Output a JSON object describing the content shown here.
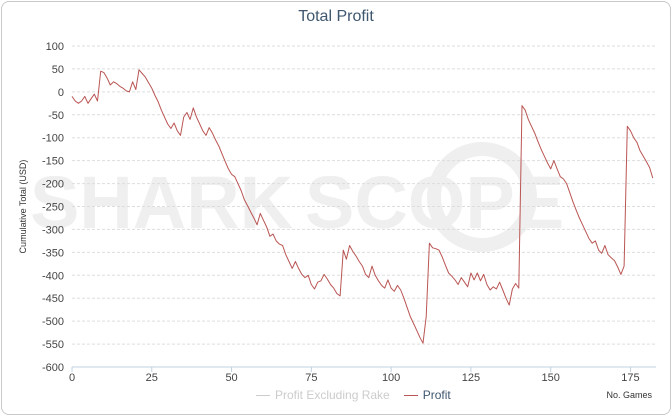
{
  "chart_data": {
    "type": "line",
    "title": "Total Profit",
    "ylabel": "Cumulative Total (USD)",
    "xlabel": "No. Games",
    "xlim": [
      0,
      183
    ],
    "ylim": [
      -600,
      100
    ],
    "x_ticks": [
      0,
      25,
      50,
      75,
      100,
      125,
      150,
      175
    ],
    "y_ticks": [
      100,
      50,
      0,
      -50,
      -100,
      -150,
      -200,
      -250,
      -300,
      -350,
      -400,
      -450,
      -500,
      -550,
      -600
    ],
    "grid": true,
    "legend_position": "bottom-center",
    "watermark": "SHARK SCOPE",
    "series": [
      {
        "name": "Profit Excluding Rake",
        "color": "#cccccc",
        "visible": false,
        "values": []
      },
      {
        "name": "Profit",
        "color": "#b95553",
        "visible": true,
        "points": [
          [
            0,
            -10
          ],
          [
            1,
            -20
          ],
          [
            2,
            -25
          ],
          [
            3,
            -20
          ],
          [
            4,
            -10
          ],
          [
            5,
            -25
          ],
          [
            6,
            -15
          ],
          [
            7,
            -5
          ],
          [
            8,
            -20
          ],
          [
            9,
            45
          ],
          [
            10,
            42
          ],
          [
            11,
            30
          ],
          [
            12,
            15
          ],
          [
            13,
            22
          ],
          [
            14,
            18
          ],
          [
            15,
            12
          ],
          [
            16,
            8
          ],
          [
            17,
            2
          ],
          [
            18,
            0
          ],
          [
            19,
            22
          ],
          [
            20,
            5
          ],
          [
            21,
            48
          ],
          [
            22,
            40
          ],
          [
            23,
            32
          ],
          [
            24,
            20
          ],
          [
            25,
            8
          ],
          [
            26,
            -8
          ],
          [
            27,
            -22
          ],
          [
            28,
            -40
          ],
          [
            29,
            -55
          ],
          [
            30,
            -70
          ],
          [
            31,
            -80
          ],
          [
            32,
            -68
          ],
          [
            33,
            -85
          ],
          [
            34,
            -95
          ],
          [
            35,
            -55
          ],
          [
            36,
            -45
          ],
          [
            37,
            -60
          ],
          [
            38,
            -35
          ],
          [
            39,
            -55
          ],
          [
            40,
            -70
          ],
          [
            41,
            -85
          ],
          [
            42,
            -95
          ],
          [
            43,
            -78
          ],
          [
            44,
            -90
          ],
          [
            45,
            -105
          ],
          [
            46,
            -118
          ],
          [
            47,
            -135
          ],
          [
            48,
            -152
          ],
          [
            49,
            -168
          ],
          [
            50,
            -180
          ],
          [
            51,
            -185
          ],
          [
            52,
            -200
          ],
          [
            53,
            -215
          ],
          [
            54,
            -235
          ],
          [
            55,
            -248
          ],
          [
            56,
            -262
          ],
          [
            57,
            -275
          ],
          [
            58,
            -290
          ],
          [
            59,
            -265
          ],
          [
            60,
            -280
          ],
          [
            61,
            -295
          ],
          [
            62,
            -315
          ],
          [
            63,
            -310
          ],
          [
            64,
            -325
          ],
          [
            65,
            -332
          ],
          [
            66,
            -335
          ],
          [
            67,
            -355
          ],
          [
            68,
            -370
          ],
          [
            69,
            -385
          ],
          [
            70,
            -370
          ],
          [
            71,
            -385
          ],
          [
            72,
            -398
          ],
          [
            73,
            -405
          ],
          [
            74,
            -400
          ],
          [
            75,
            -420
          ],
          [
            76,
            -430
          ],
          [
            77,
            -415
          ],
          [
            78,
            -412
          ],
          [
            79,
            -398
          ],
          [
            80,
            -408
          ],
          [
            81,
            -420
          ],
          [
            82,
            -428
          ],
          [
            83,
            -440
          ],
          [
            84,
            -445
          ],
          [
            85,
            -345
          ],
          [
            86,
            -365
          ],
          [
            87,
            -335
          ],
          [
            88,
            -348
          ],
          [
            89,
            -358
          ],
          [
            90,
            -370
          ],
          [
            91,
            -380
          ],
          [
            92,
            -398
          ],
          [
            93,
            -405
          ],
          [
            94,
            -380
          ],
          [
            95,
            -400
          ],
          [
            96,
            -412
          ],
          [
            97,
            -422
          ],
          [
            98,
            -428
          ],
          [
            99,
            -410
          ],
          [
            100,
            -428
          ],
          [
            101,
            -435
          ],
          [
            102,
            -422
          ],
          [
            103,
            -432
          ],
          [
            104,
            -450
          ],
          [
            105,
            -470
          ],
          [
            106,
            -490
          ],
          [
            107,
            -505
          ],
          [
            108,
            -520
          ],
          [
            109,
            -535
          ],
          [
            110,
            -548
          ],
          [
            111,
            -490
          ],
          [
            112,
            -330
          ],
          [
            113,
            -340
          ],
          [
            114,
            -342
          ],
          [
            115,
            -345
          ],
          [
            116,
            -360
          ],
          [
            117,
            -378
          ],
          [
            118,
            -395
          ],
          [
            119,
            -402
          ],
          [
            120,
            -410
          ],
          [
            121,
            -420
          ],
          [
            122,
            -405
          ],
          [
            123,
            -415
          ],
          [
            124,
            -425
          ],
          [
            125,
            -395
          ],
          [
            126,
            -410
          ],
          [
            127,
            -395
          ],
          [
            128,
            -412
          ],
          [
            129,
            -398
          ],
          [
            130,
            -420
          ],
          [
            131,
            -432
          ],
          [
            132,
            -425
          ],
          [
            133,
            -430
          ],
          [
            134,
            -415
          ],
          [
            135,
            -432
          ],
          [
            136,
            -450
          ],
          [
            137,
            -465
          ],
          [
            138,
            -430
          ],
          [
            139,
            -418
          ],
          [
            140,
            -428
          ],
          [
            141,
            -30
          ],
          [
            142,
            -40
          ],
          [
            143,
            -60
          ],
          [
            144,
            -75
          ],
          [
            145,
            -90
          ],
          [
            146,
            -108
          ],
          [
            147,
            -125
          ],
          [
            148,
            -140
          ],
          [
            149,
            -155
          ],
          [
            150,
            -168
          ],
          [
            151,
            -150
          ],
          [
            152,
            -168
          ],
          [
            153,
            -185
          ],
          [
            154,
            -190
          ],
          [
            155,
            -200
          ],
          [
            156,
            -220
          ],
          [
            157,
            -240
          ],
          [
            158,
            -258
          ],
          [
            159,
            -275
          ],
          [
            160,
            -290
          ],
          [
            161,
            -305
          ],
          [
            162,
            -320
          ],
          [
            163,
            -330
          ],
          [
            164,
            -325
          ],
          [
            165,
            -345
          ],
          [
            166,
            -352
          ],
          [
            167,
            -335
          ],
          [
            168,
            -355
          ],
          [
            169,
            -362
          ],
          [
            170,
            -368
          ],
          [
            171,
            -382
          ],
          [
            172,
            -398
          ],
          [
            173,
            -380
          ],
          [
            174,
            -75
          ],
          [
            175,
            -85
          ],
          [
            176,
            -100
          ],
          [
            177,
            -110
          ],
          [
            178,
            -128
          ],
          [
            179,
            -140
          ],
          [
            180,
            -152
          ],
          [
            181,
            -165
          ],
          [
            182,
            -188
          ]
        ]
      }
    ]
  }
}
